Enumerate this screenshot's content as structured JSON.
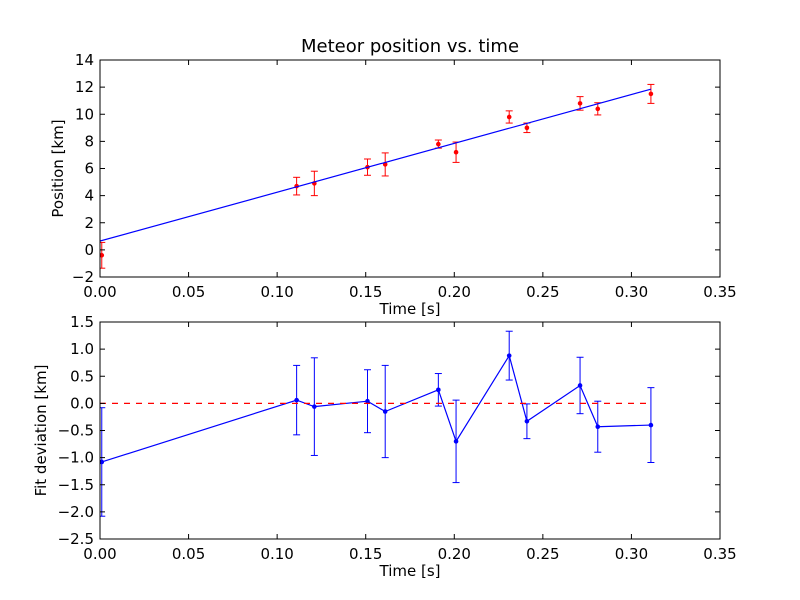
{
  "chart_data": [
    {
      "type": "scatter",
      "title": "Meteor position vs. time",
      "xlabel": "Time [s]",
      "ylabel": "Position [km]",
      "xlim": [
        0,
        0.35
      ],
      "ylim": [
        -2,
        14
      ],
      "xticks": [
        "0.00",
        "0.05",
        "0.10",
        "0.15",
        "0.20",
        "0.25",
        "0.30",
        "0.35"
      ],
      "yticks": [
        "−2",
        "0",
        "2",
        "4",
        "6",
        "8",
        "10",
        "12",
        "14"
      ],
      "grid": false,
      "series": [
        {
          "style": "points-with-errorbars",
          "color": "#ff0000",
          "x": [
            0.001,
            0.111,
            0.121,
            0.151,
            0.161,
            0.191,
            0.201,
            0.231,
            0.241,
            0.271,
            0.281,
            0.311
          ],
          "y": [
            -0.4,
            4.7,
            4.9,
            6.1,
            6.3,
            7.8,
            7.2,
            9.8,
            9.0,
            10.8,
            10.4,
            11.5
          ],
          "yerr": [
            0.95,
            0.65,
            0.9,
            0.6,
            0.85,
            0.3,
            0.75,
            0.45,
            0.35,
            0.5,
            0.45,
            0.7
          ]
        },
        {
          "style": "fit-line",
          "color": "#0000ff",
          "x": [
            0.0,
            0.311
          ],
          "y": [
            0.65,
            11.85
          ]
        }
      ]
    },
    {
      "type": "line",
      "xlabel": "Time [s]",
      "ylabel": "Fit deviation [km]",
      "xlim": [
        0,
        0.35
      ],
      "ylim": [
        -2.5,
        1.5
      ],
      "xticks": [
        "0.00",
        "0.05",
        "0.10",
        "0.15",
        "0.20",
        "0.25",
        "0.30",
        "0.35"
      ],
      "yticks": [
        "−2.5",
        "−2.0",
        "−1.5",
        "−1.0",
        "−0.5",
        "0.0",
        "0.5",
        "1.0",
        "1.5"
      ],
      "grid": false,
      "series": [
        {
          "style": "line-with-errorbars",
          "color": "#0000ff",
          "x": [
            0.001,
            0.111,
            0.121,
            0.151,
            0.161,
            0.191,
            0.201,
            0.231,
            0.241,
            0.271,
            0.281,
            0.311
          ],
          "y": [
            -1.08,
            0.06,
            -0.06,
            0.04,
            -0.15,
            0.25,
            -0.7,
            0.88,
            -0.33,
            0.33,
            -0.43,
            -0.4
          ],
          "yerr": [
            1.0,
            0.64,
            0.9,
            0.58,
            0.85,
            0.3,
            0.76,
            0.45,
            0.32,
            0.52,
            0.47,
            0.69
          ]
        },
        {
          "style": "reference-dashed",
          "color": "#ff0000",
          "y": 0.0,
          "x": [
            0.0,
            0.311
          ]
        }
      ]
    }
  ]
}
